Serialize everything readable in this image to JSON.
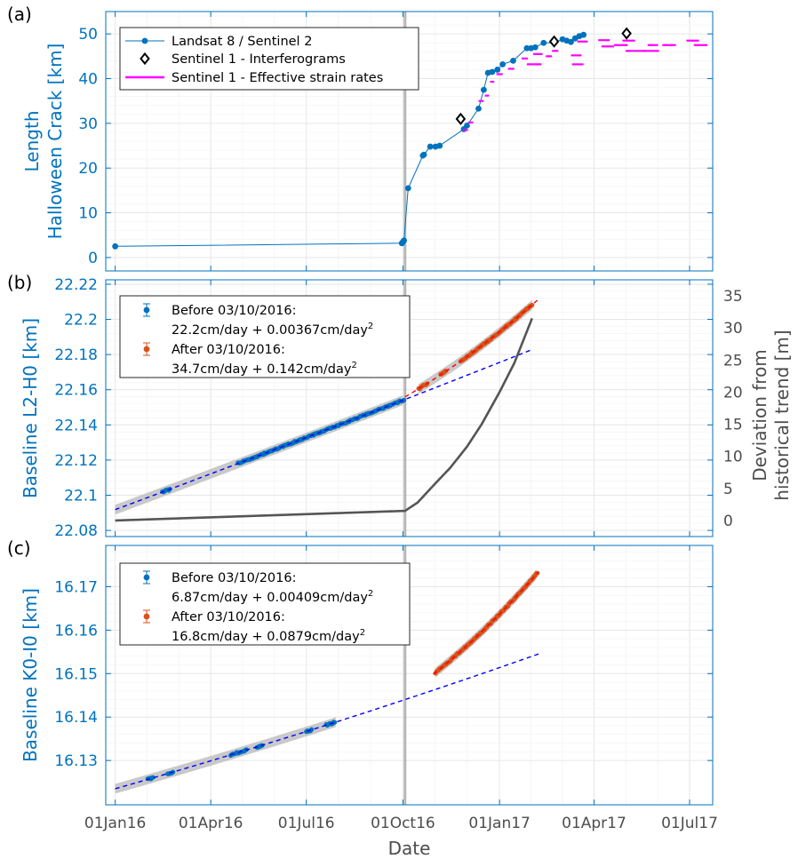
{
  "colors": {
    "axis_blue": "#0072BD",
    "axis_gray": "#4d4d4d",
    "landsat": "#0072BD",
    "interferogram": "#000000",
    "strain": "#FF00FF",
    "before_pts": "#0072BD",
    "after_pts": "#D95319",
    "before_fit": "#0000FF",
    "after_fit": "#FF0000",
    "deviation": "#555555",
    "uncertainty_band": "#C0C0C0",
    "grid": "#E6E6E6",
    "event_line": "#A6A6A6"
  },
  "xaxis": {
    "label": "Date",
    "ticks": [
      "2016-01-01",
      "2016-04-01",
      "2016-07-01",
      "2016-10-01",
      "2017-01-01",
      "2017-04-01",
      "2017-07-01"
    ],
    "tick_labels": [
      "01Jan16",
      "01Apr16",
      "01Jul16",
      "01Oct16",
      "01Jan17",
      "01Apr17",
      "01Jul17"
    ],
    "range": [
      "2015-12-23",
      "2017-07-23"
    ],
    "event_date": "2016-10-03"
  },
  "chart_data": [
    {
      "type": "line",
      "panel_label": "(a)",
      "ylabel": [
        "Length",
        "Halloween Crack [km]"
      ],
      "ylim": [
        -3,
        55
      ],
      "yticks": [
        0,
        10,
        20,
        30,
        40,
        50
      ],
      "grid": true,
      "legend_placement": "top-left",
      "legend": [
        "Landsat 8 / Sentinel 2",
        "Sentinel 1 - Interferograms",
        "Sentinel 1 - Effective strain rates"
      ],
      "series": [
        {
          "name": "Landsat 8 / Sentinel 2",
          "kind": "line+dots",
          "points": [
            [
              "2016-01-01",
              2.5
            ],
            [
              "2016-09-30",
              3.2
            ],
            [
              "2016-10-01",
              3.5
            ],
            [
              "2016-10-02",
              3.8
            ],
            [
              "2016-10-06",
              15.5
            ],
            [
              "2016-10-20",
              22.8
            ],
            [
              "2016-10-21",
              23.0
            ],
            [
              "2016-10-27",
              24.8
            ],
            [
              "2016-11-01",
              24.8
            ],
            [
              "2016-11-05",
              25.0
            ],
            [
              "2016-11-28",
              28.7
            ],
            [
              "2016-12-01",
              29.5
            ],
            [
              "2016-12-12",
              33.3
            ],
            [
              "2016-12-17",
              37.5
            ],
            [
              "2016-12-21",
              41.3
            ],
            [
              "2016-12-25",
              41.5
            ],
            [
              "2016-12-30",
              42.0
            ],
            [
              "2017-01-04",
              43.2
            ],
            [
              "2017-01-14",
              44.0
            ],
            [
              "2017-01-27",
              46.8
            ],
            [
              "2017-01-31",
              46.8
            ],
            [
              "2017-02-04",
              47.0
            ],
            [
              "2017-02-12",
              48.0
            ],
            [
              "2017-02-22",
              48.0
            ],
            [
              "2017-03-02",
              48.8
            ],
            [
              "2017-03-06",
              48.5
            ],
            [
              "2017-03-10",
              48.2
            ],
            [
              "2017-03-14",
              49.0
            ],
            [
              "2017-03-18",
              49.5
            ],
            [
              "2017-03-22",
              49.8
            ]
          ]
        },
        {
          "name": "Sentinel 1 - Interferograms",
          "kind": "diamonds",
          "points": [
            [
              "2016-11-25",
              31.0
            ],
            [
              "2017-02-22",
              48.3
            ],
            [
              "2017-05-02",
              50.1
            ]
          ]
        },
        {
          "name": "Sentinel 1 - Effective strain rates",
          "kind": "segments",
          "segments": [
            [
              "2016-11-27",
              "2016-12-02",
              28.5
            ],
            [
              "2016-12-02",
              "2016-12-07",
              30.2
            ],
            [
              "2016-12-12",
              "2016-12-17",
              35.0
            ],
            [
              "2016-12-18",
              "2016-12-22",
              36.2
            ],
            [
              "2016-12-23",
              "2016-12-27",
              39.3
            ],
            [
              "2016-12-29",
              "2017-01-04",
              41.0
            ],
            [
              "2017-01-09",
              "2017-01-15",
              42.2
            ],
            [
              "2017-01-22",
              "2017-01-28",
              44.5
            ],
            [
              "2017-01-27",
              "2017-02-10",
              43.2
            ],
            [
              "2017-02-02",
              "2017-02-11",
              45.5
            ],
            [
              "2017-02-14",
              "2017-02-20",
              45.0
            ],
            [
              "2017-02-20",
              "2017-02-26",
              46.2
            ],
            [
              "2017-03-10",
              "2017-03-20",
              45.2
            ],
            [
              "2017-03-11",
              "2017-03-22",
              43.2
            ],
            [
              "2017-03-16",
              "2017-03-26",
              48.3
            ],
            [
              "2017-04-05",
              "2017-04-16",
              48.6
            ],
            [
              "2017-04-08",
              "2017-04-20",
              47.2
            ],
            [
              "2017-04-20",
              "2017-05-03",
              47.5
            ],
            [
              "2017-04-28",
              "2017-05-10",
              48.5
            ],
            [
              "2017-05-01",
              "2017-05-20",
              46.2
            ],
            [
              "2017-05-18",
              "2017-06-02",
              46.2
            ],
            [
              "2017-05-22",
              "2017-06-01",
              47.5
            ],
            [
              "2017-06-05",
              "2017-06-18",
              47.5
            ],
            [
              "2017-06-28",
              "2017-07-10",
              48.5
            ],
            [
              "2017-07-05",
              "2017-07-18",
              47.5
            ]
          ]
        }
      ]
    },
    {
      "type": "scatter",
      "panel_label": "(b)",
      "ylabel": "Baseline L2-H0 [km]",
      "ylim": [
        22.0765,
        22.2225
      ],
      "yticks": [
        22.08,
        22.1,
        22.12,
        22.14,
        22.16,
        22.18,
        22.2,
        22.22
      ],
      "ytick_labels": [
        "22.08",
        "22.1",
        "22.12",
        "22.14",
        "22.16",
        "22.18",
        "22.2",
        "22.22"
      ],
      "y2label": [
        "Deviation from",
        "historical trend [m]"
      ],
      "y2lim": [
        -2.5,
        37.5
      ],
      "y2ticks": [
        0,
        5,
        10,
        15,
        20,
        25,
        30,
        35
      ],
      "grid": true,
      "legend_placement": "top-left",
      "legend": [
        {
          "line1": "Before 03/10/2016:",
          "line2": "22.2cm/day + 0.00367cm/day",
          "sup": "2"
        },
        {
          "line1": "After 03/10/2016:",
          "line2": "34.7cm/day + 0.142cm/day",
          "sup": "2"
        }
      ],
      "fits": {
        "before": {
          "origin": "2016-01-01",
          "y0": 22.0918,
          "v_cm_per_day": 22.2,
          "a_cm_per_day2": 0.00367,
          "x_end": "2017-02-01"
        },
        "after": {
          "origin": "2016-10-03",
          "y0": 22.1559,
          "v_cm_per_day": 34.7,
          "a_cm_per_day2": 0.142,
          "x_end": "2017-02-04"
        }
      },
      "series": [
        {
          "name": "before",
          "ranges": [
            [
              "2016-02-15",
              "2016-02-22"
            ],
            [
              "2016-04-27",
              "2016-10-02"
            ]
          ]
        },
        {
          "name": "after",
          "ranges": [
            [
              "2016-10-16",
              "2016-10-24"
            ],
            [
              "2016-11-06",
              "2016-11-11"
            ],
            [
              "2016-11-25",
              "2017-02-01"
            ]
          ]
        },
        {
          "name": "deviation",
          "axis": "right",
          "points": [
            [
              "2016-01-01",
              0.0
            ],
            [
              "2016-10-03",
              1.5
            ],
            [
              "2016-10-15",
              2.8
            ],
            [
              "2016-11-01",
              5.8
            ],
            [
              "2016-11-15",
              8.2
            ],
            [
              "2016-12-01",
              11.5
            ],
            [
              "2016-12-15",
              15.0
            ],
            [
              "2017-01-01",
              20.0
            ],
            [
              "2017-01-15",
              24.5
            ],
            [
              "2017-02-01",
              31.5
            ]
          ]
        }
      ]
    },
    {
      "type": "scatter",
      "panel_label": "(c)",
      "ylabel": "Baseline K0-I0 [km]",
      "ylim": [
        16.1198,
        16.1795
      ],
      "yticks": [
        16.13,
        16.14,
        16.15,
        16.16,
        16.17
      ],
      "ytick_labels": [
        "16.13",
        "16.14",
        "16.15",
        "16.16",
        "16.17"
      ],
      "grid": true,
      "legend_placement": "top-left",
      "legend": [
        {
          "line1": "Before 03/10/2016:",
          "line2": "6.87cm/day + 0.00409cm/day",
          "sup": "2"
        },
        {
          "line1": "After 03/10/2016:",
          "line2": "16.8cm/day + 0.0879cm/day",
          "sup": "2"
        }
      ],
      "fits": {
        "before": {
          "origin": "2016-01-01",
          "y0": 16.1235,
          "v_cm_per_day": 6.87,
          "a_cm_per_day2": 0.00409,
          "x_end": "2017-02-08"
        },
        "after": {
          "origin": "2016-10-03",
          "y0": 16.145,
          "v_cm_per_day": 16.8,
          "a_cm_per_day2": 0.0879,
          "x_end": "2017-02-08"
        }
      },
      "series": [
        {
          "name": "before",
          "ranges": [
            [
              "2016-02-01",
              "2016-02-06"
            ],
            [
              "2016-02-20",
              "2016-02-25"
            ],
            [
              "2016-04-20",
              "2016-05-05"
            ],
            [
              "2016-05-15",
              "2016-05-20"
            ],
            [
              "2016-07-01",
              "2016-07-06"
            ],
            [
              "2016-07-20",
              "2016-07-28"
            ]
          ]
        },
        {
          "name": "after",
          "ranges": [
            [
              "2016-11-01",
              "2017-02-06"
            ]
          ]
        }
      ]
    }
  ]
}
